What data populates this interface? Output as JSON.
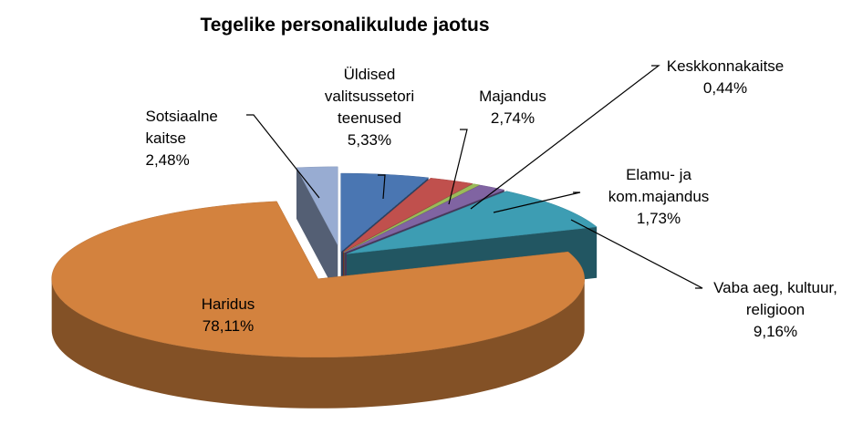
{
  "chart_data": {
    "type": "pie",
    "title": "Tegelike personalikulude jaotus",
    "categories": [
      "Üldised valitsussetori teenused",
      "Majandus",
      "Keskkonnakaitse",
      "Elamu- ja kom.majandus",
      "Vaba aeg, kultuur, religioon",
      "Haridus",
      "Sotsiaalne kaitse"
    ],
    "values": [
      5.33,
      2.74,
      0.44,
      1.73,
      9.16,
      78.11,
      2.48
    ],
    "value_labels": [
      "5,33%",
      "2,74%",
      "0,44%",
      "1,73%",
      "9,16%",
      "78,11%",
      "2,48%"
    ],
    "colors": [
      "#4a76b2",
      "#c0504d",
      "#9bbb59",
      "#8064a2",
      "#3d9db3",
      "#d3823e",
      "#98acd2"
    ]
  }
}
